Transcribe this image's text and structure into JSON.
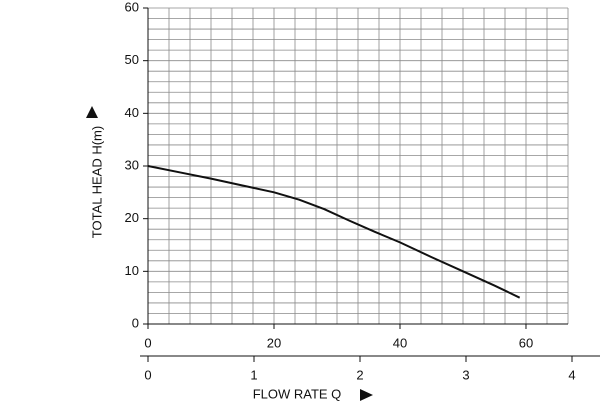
{
  "chart_data": {
    "type": "line",
    "x_label": "FLOW RATE Q",
    "y_label": "TOTAL HEAD H(m)",
    "x": [
      0,
      5,
      10,
      15,
      20,
      24,
      28,
      32,
      36,
      40,
      45,
      50,
      55,
      59
    ],
    "series": [
      {
        "name": "H",
        "color": "#111111",
        "values": [
          30,
          28.8,
          27.6,
          26.3,
          25,
          23.6,
          21.8,
          19.6,
          17.5,
          15.5,
          12.7,
          10,
          7.3,
          5
        ]
      }
    ],
    "xlim": [
      0,
      66.67
    ],
    "ylim": [
      0,
      60
    ],
    "xticks": [
      0,
      20,
      40,
      60
    ],
    "yticks": [
      0,
      10,
      20,
      30,
      40,
      50,
      60
    ],
    "x2lim": [
      0,
      4
    ],
    "x2ticks": [
      0,
      1,
      2,
      3,
      4
    ],
    "grid": true,
    "grid_x_count": 20,
    "grid_y_count": 30
  }
}
